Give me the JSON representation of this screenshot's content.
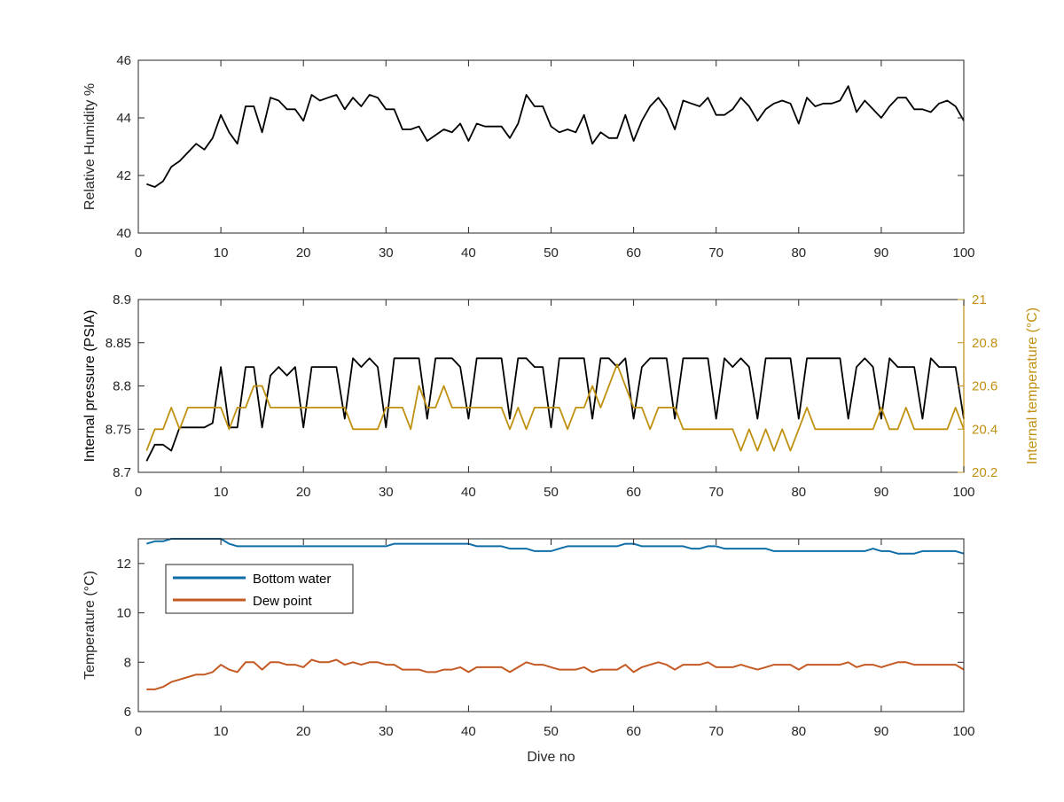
{
  "figure": {
    "xlabel": "Dive no"
  },
  "colors": {
    "black": "#000000",
    "gold": "#c09010",
    "blue": "#0f6ea8",
    "orange": "#c45a23",
    "axis": "#262626",
    "tick_text": "#262626"
  },
  "chart_data": [
    {
      "type": "line",
      "ylabel": "Relative Humidity %",
      "xlabel": "",
      "xlim": [
        0,
        100
      ],
      "ylim": [
        40,
        46
      ],
      "xticks": [
        0,
        10,
        20,
        30,
        40,
        50,
        60,
        70,
        80,
        90,
        100
      ],
      "yticks": [
        40,
        42,
        44,
        46
      ],
      "grid": false,
      "series": [
        {
          "color": "#000000",
          "x": [
            1,
            2,
            3,
            4,
            5,
            6,
            7,
            8,
            9,
            10,
            11,
            12,
            13,
            14,
            15,
            16,
            17,
            18,
            19,
            20,
            21,
            22,
            23,
            24,
            25,
            26,
            27,
            28,
            29,
            30,
            31,
            32,
            33,
            34,
            35,
            36,
            37,
            38,
            39,
            40,
            41,
            42,
            43,
            44,
            45,
            46,
            47,
            48,
            49,
            50,
            51,
            52,
            53,
            54,
            55,
            56,
            57,
            58,
            59,
            60,
            61,
            62,
            63,
            64,
            65,
            66,
            67,
            68,
            69,
            70,
            71,
            72,
            73,
            74,
            75,
            76,
            77,
            78,
            79,
            80,
            81,
            82,
            83,
            84,
            85,
            86,
            87,
            88,
            89,
            90,
            91,
            92,
            93,
            94,
            95,
            96,
            97,
            98,
            99,
            100
          ],
          "values": [
            41.7,
            41.6,
            41.8,
            42.3,
            42.5,
            42.8,
            43.1,
            42.9,
            43.3,
            44.1,
            43.5,
            43.1,
            44.4,
            44.4,
            43.5,
            44.7,
            44.6,
            44.3,
            44.3,
            43.9,
            44.8,
            44.6,
            44.7,
            44.8,
            44.3,
            44.7,
            44.4,
            44.8,
            44.7,
            44.3,
            44.3,
            43.6,
            43.6,
            43.7,
            43.2,
            43.4,
            43.6,
            43.5,
            43.8,
            43.2,
            43.8,
            43.7,
            43.7,
            43.7,
            43.3,
            43.8,
            44.8,
            44.4,
            44.4,
            43.7,
            43.5,
            43.6,
            43.5,
            44.1,
            43.1,
            43.5,
            43.3,
            43.3,
            44.1,
            43.2,
            43.9,
            44.4,
            44.7,
            44.3,
            43.6,
            44.6,
            44.5,
            44.4,
            44.7,
            44.1,
            44.1,
            44.3,
            44.7,
            44.4,
            43.9,
            44.3,
            44.5,
            44.6,
            44.5,
            43.8,
            44.7,
            44.4,
            44.5,
            44.5,
            44.6,
            45.1,
            44.2,
            44.6,
            44.3,
            44.0,
            44.4,
            44.7,
            44.7,
            44.3,
            44.3,
            44.2,
            44.5,
            44.6,
            44.4,
            43.9
          ]
        }
      ]
    },
    {
      "type": "line",
      "ylabel": "Internal pressure (PSIA)",
      "y2label": "Internal temperature (°C)",
      "xlabel": "",
      "xlim": [
        0,
        100
      ],
      "ylim": [
        8.7,
        8.9
      ],
      "y2lim": [
        20.2,
        21
      ],
      "xticks": [
        0,
        10,
        20,
        30,
        40,
        50,
        60,
        70,
        80,
        90,
        100
      ],
      "yticks": [
        "8.7",
        "8.75",
        "8.8",
        "8.85",
        "8.9"
      ],
      "y2ticks": [
        "20.2",
        "20.4",
        "20.6",
        "20.8",
        "21"
      ],
      "grid": false,
      "series": [
        {
          "color": "#000000",
          "axis": "left",
          "x": [
            1,
            2,
            3,
            4,
            5,
            6,
            7,
            8,
            9,
            10,
            11,
            12,
            13,
            14,
            15,
            16,
            17,
            18,
            19,
            20,
            21,
            22,
            23,
            24,
            25,
            26,
            27,
            28,
            29,
            30,
            31,
            32,
            33,
            34,
            35,
            36,
            37,
            38,
            39,
            40,
            41,
            42,
            43,
            44,
            45,
            46,
            47,
            48,
            49,
            50,
            51,
            52,
            53,
            54,
            55,
            56,
            57,
            58,
            59,
            60,
            61,
            62,
            63,
            64,
            65,
            66,
            67,
            68,
            69,
            70,
            71,
            72,
            73,
            74,
            75,
            76,
            77,
            78,
            79,
            80,
            81,
            82,
            83,
            84,
            85,
            86,
            87,
            88,
            89,
            90,
            91,
            92,
            93,
            94,
            95,
            96,
            97,
            98,
            99,
            100
          ],
          "values": [
            8.713,
            8.732,
            8.732,
            8.725,
            8.752,
            8.752,
            8.752,
            8.752,
            8.757,
            8.822,
            8.752,
            8.752,
            8.822,
            8.822,
            8.752,
            8.812,
            8.822,
            8.812,
            8.822,
            8.752,
            8.822,
            8.822,
            8.822,
            8.822,
            8.762,
            8.832,
            8.822,
            8.832,
            8.822,
            8.752,
            8.832,
            8.832,
            8.832,
            8.832,
            8.762,
            8.832,
            8.832,
            8.832,
            8.822,
            8.762,
            8.832,
            8.832,
            8.832,
            8.832,
            8.762,
            8.832,
            8.832,
            8.822,
            8.822,
            8.752,
            8.832,
            8.832,
            8.832,
            8.832,
            8.762,
            8.832,
            8.832,
            8.822,
            8.832,
            8.762,
            8.822,
            8.832,
            8.832,
            8.832,
            8.762,
            8.832,
            8.832,
            8.832,
            8.832,
            8.762,
            8.832,
            8.822,
            8.832,
            8.822,
            8.762,
            8.832,
            8.832,
            8.832,
            8.832,
            8.762,
            8.832,
            8.832,
            8.832,
            8.832,
            8.832,
            8.762,
            8.822,
            8.832,
            8.822,
            8.762,
            8.832,
            8.822,
            8.822,
            8.822,
            8.762,
            8.832,
            8.822,
            8.822,
            8.822,
            8.762
          ]
        },
        {
          "color": "#c09010",
          "axis": "right",
          "x": [
            1,
            2,
            3,
            4,
            5,
            6,
            7,
            8,
            9,
            10,
            11,
            12,
            13,
            14,
            15,
            16,
            17,
            18,
            19,
            20,
            21,
            22,
            23,
            24,
            25,
            26,
            27,
            28,
            29,
            30,
            31,
            32,
            33,
            34,
            35,
            36,
            37,
            38,
            39,
            40,
            41,
            42,
            43,
            44,
            45,
            46,
            47,
            48,
            49,
            50,
            51,
            52,
            53,
            54,
            55,
            56,
            57,
            58,
            59,
            60,
            61,
            62,
            63,
            64,
            65,
            66,
            67,
            68,
            69,
            70,
            71,
            72,
            73,
            74,
            75,
            76,
            77,
            78,
            79,
            80,
            81,
            82,
            83,
            84,
            85,
            86,
            87,
            88,
            89,
            90,
            91,
            92,
            93,
            94,
            95,
            96,
            97,
            98,
            99,
            100
          ],
          "values": [
            20.3,
            20.4,
            20.4,
            20.5,
            20.4,
            20.5,
            20.5,
            20.5,
            20.5,
            20.5,
            20.4,
            20.5,
            20.5,
            20.6,
            20.6,
            20.5,
            20.5,
            20.5,
            20.5,
            20.5,
            20.5,
            20.5,
            20.5,
            20.5,
            20.5,
            20.4,
            20.4,
            20.4,
            20.4,
            20.5,
            20.5,
            20.5,
            20.4,
            20.6,
            20.5,
            20.5,
            20.6,
            20.5,
            20.5,
            20.5,
            20.5,
            20.5,
            20.5,
            20.5,
            20.4,
            20.5,
            20.4,
            20.5,
            20.5,
            20.5,
            20.5,
            20.4,
            20.5,
            20.5,
            20.6,
            20.5,
            20.6,
            20.7,
            20.6,
            20.5,
            20.5,
            20.4,
            20.5,
            20.5,
            20.5,
            20.4,
            20.4,
            20.4,
            20.4,
            20.4,
            20.4,
            20.4,
            20.3,
            20.4,
            20.3,
            20.4,
            20.3,
            20.4,
            20.3,
            20.4,
            20.5,
            20.4,
            20.4,
            20.4,
            20.4,
            20.4,
            20.4,
            20.4,
            20.4,
            20.5,
            20.4,
            20.4,
            20.5,
            20.4,
            20.4,
            20.4,
            20.4,
            20.4,
            20.5,
            20.4
          ]
        }
      ]
    },
    {
      "type": "line",
      "ylabel": "Temperature (°C)",
      "xlabel": "Dive no",
      "xlim": [
        0,
        100
      ],
      "ylim": [
        6,
        13
      ],
      "xticks": [
        0,
        10,
        20,
        30,
        40,
        50,
        60,
        70,
        80,
        90,
        100
      ],
      "yticks": [
        6,
        8,
        10,
        12
      ],
      "grid": false,
      "legend_position": "upper-left",
      "series": [
        {
          "name": "Bottom water",
          "color": "#0f6ea8",
          "x": [
            1,
            2,
            3,
            4,
            5,
            6,
            7,
            8,
            9,
            10,
            11,
            12,
            13,
            14,
            15,
            16,
            17,
            18,
            19,
            20,
            21,
            22,
            23,
            24,
            25,
            26,
            27,
            28,
            29,
            30,
            31,
            32,
            33,
            34,
            35,
            36,
            37,
            38,
            39,
            40,
            41,
            42,
            43,
            44,
            45,
            46,
            47,
            48,
            49,
            50,
            51,
            52,
            53,
            54,
            55,
            56,
            57,
            58,
            59,
            60,
            61,
            62,
            63,
            64,
            65,
            66,
            67,
            68,
            69,
            70,
            71,
            72,
            73,
            74,
            75,
            76,
            77,
            78,
            79,
            80,
            81,
            82,
            83,
            84,
            85,
            86,
            87,
            88,
            89,
            90,
            91,
            92,
            93,
            94,
            95,
            96,
            97,
            98,
            99,
            100
          ],
          "values": [
            12.8,
            12.9,
            12.9,
            13.0,
            13.0,
            13.0,
            13.0,
            13.0,
            13.0,
            13.0,
            12.8,
            12.7,
            12.7,
            12.7,
            12.7,
            12.7,
            12.7,
            12.7,
            12.7,
            12.7,
            12.7,
            12.7,
            12.7,
            12.7,
            12.7,
            12.7,
            12.7,
            12.7,
            12.7,
            12.7,
            12.8,
            12.8,
            12.8,
            12.8,
            12.8,
            12.8,
            12.8,
            12.8,
            12.8,
            12.8,
            12.7,
            12.7,
            12.7,
            12.7,
            12.6,
            12.6,
            12.6,
            12.5,
            12.5,
            12.5,
            12.6,
            12.7,
            12.7,
            12.7,
            12.7,
            12.7,
            12.7,
            12.7,
            12.8,
            12.8,
            12.7,
            12.7,
            12.7,
            12.7,
            12.7,
            12.7,
            12.6,
            12.6,
            12.7,
            12.7,
            12.6,
            12.6,
            12.6,
            12.6,
            12.6,
            12.6,
            12.5,
            12.5,
            12.5,
            12.5,
            12.5,
            12.5,
            12.5,
            12.5,
            12.5,
            12.5,
            12.5,
            12.5,
            12.6,
            12.5,
            12.5,
            12.4,
            12.4,
            12.4,
            12.5,
            12.5,
            12.5,
            12.5,
            12.5,
            12.4
          ]
        },
        {
          "name": "Dew point",
          "color": "#c45a23",
          "x": [
            1,
            2,
            3,
            4,
            5,
            6,
            7,
            8,
            9,
            10,
            11,
            12,
            13,
            14,
            15,
            16,
            17,
            18,
            19,
            20,
            21,
            22,
            23,
            24,
            25,
            26,
            27,
            28,
            29,
            30,
            31,
            32,
            33,
            34,
            35,
            36,
            37,
            38,
            39,
            40,
            41,
            42,
            43,
            44,
            45,
            46,
            47,
            48,
            49,
            50,
            51,
            52,
            53,
            54,
            55,
            56,
            57,
            58,
            59,
            60,
            61,
            62,
            63,
            64,
            65,
            66,
            67,
            68,
            69,
            70,
            71,
            72,
            73,
            74,
            75,
            76,
            77,
            78,
            79,
            80,
            81,
            82,
            83,
            84,
            85,
            86,
            87,
            88,
            89,
            90,
            91,
            92,
            93,
            94,
            95,
            96,
            97,
            98,
            99,
            100
          ],
          "values": [
            6.9,
            6.9,
            7.0,
            7.2,
            7.3,
            7.4,
            7.5,
            7.5,
            7.6,
            7.9,
            7.7,
            7.6,
            8.0,
            8.0,
            7.7,
            8.0,
            8.0,
            7.9,
            7.9,
            7.8,
            8.1,
            8.0,
            8.0,
            8.1,
            7.9,
            8.0,
            7.9,
            8.0,
            8.0,
            7.9,
            7.9,
            7.7,
            7.7,
            7.7,
            7.6,
            7.6,
            7.7,
            7.7,
            7.8,
            7.6,
            7.8,
            7.8,
            7.8,
            7.8,
            7.6,
            7.8,
            8.0,
            7.9,
            7.9,
            7.8,
            7.7,
            7.7,
            7.7,
            7.8,
            7.6,
            7.7,
            7.7,
            7.7,
            7.9,
            7.6,
            7.8,
            7.9,
            8.0,
            7.9,
            7.7,
            7.9,
            7.9,
            7.9,
            8.0,
            7.8,
            7.8,
            7.8,
            7.9,
            7.8,
            7.7,
            7.8,
            7.9,
            7.9,
            7.9,
            7.7,
            7.9,
            7.9,
            7.9,
            7.9,
            7.9,
            8.0,
            7.8,
            7.9,
            7.9,
            7.8,
            7.9,
            8.0,
            8.0,
            7.9,
            7.9,
            7.9,
            7.9,
            7.9,
            7.9,
            7.7
          ]
        }
      ]
    }
  ]
}
